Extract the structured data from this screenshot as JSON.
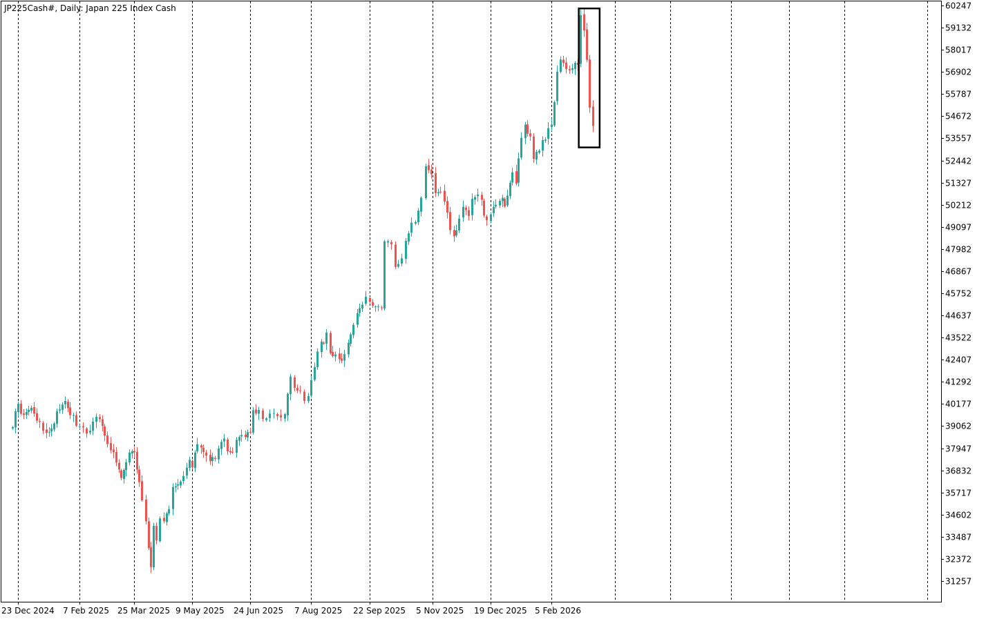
{
  "chart_data": {
    "type": "candlestick",
    "title": "JP225Cash#, Daily:  Japan 225 Index Cash",
    "colors": {
      "up": "#26a69a",
      "down": "#ef5350",
      "grid": "#000000",
      "frame": "#000000",
      "highlight": "#000000"
    },
    "grid": "vertical-dashed",
    "ylim": [
      30700,
      60247
    ],
    "y_ticks": [
      60247,
      59132,
      58017,
      56902,
      55787,
      54672,
      53557,
      52442,
      51327,
      50212,
      49097,
      47982,
      46867,
      45752,
      44637,
      43522,
      42407,
      41292,
      40177,
      39062,
      37947,
      36832,
      35717,
      34602,
      33487,
      32372,
      31257
    ],
    "x_ticks": [
      {
        "date": "2024-12-23",
        "label": "23 Dec 2024"
      },
      {
        "date": "2025-02-07",
        "label": "7 Feb 2025"
      },
      {
        "date": "2025-03-25",
        "label": "25 Mar 2025"
      },
      {
        "date": "2025-05-09",
        "label": "9 May 2025"
      },
      {
        "date": "2025-06-24",
        "label": "24 Jun 2025"
      },
      {
        "date": "2025-08-07",
        "label": "7 Aug 2025"
      },
      {
        "date": "2025-09-22",
        "label": "22 Sep 2025"
      },
      {
        "date": "2025-11-05",
        "label": "5 Nov 2025"
      },
      {
        "date": "2025-12-19",
        "label": "19 Dec 2025"
      },
      {
        "date": "2026-02-05",
        "label": "5 Feb 2026"
      }
    ],
    "highlight_box": {
      "date_from": "2026-02-26",
      "date_to": "2026-03-14",
      "price_low": 53100,
      "price_high": 60100
    },
    "series_close": [
      [
        "2024-12-17",
        39000
      ],
      [
        "2024-12-19",
        39200
      ],
      [
        "2024-12-23",
        40100
      ],
      [
        "2024-12-27",
        39600
      ],
      [
        "2025-01-02",
        40050
      ],
      [
        "2025-01-08",
        39100
      ],
      [
        "2025-01-13",
        38600
      ],
      [
        "2025-01-17",
        38850
      ],
      [
        "2025-01-21",
        39800
      ],
      [
        "2025-01-27",
        40300
      ],
      [
        "2025-01-31",
        39600
      ],
      [
        "2025-02-07",
        39100
      ],
      [
        "2025-02-13",
        38650
      ],
      [
        "2025-02-18",
        39250
      ],
      [
        "2025-02-24",
        39450
      ],
      [
        "2025-02-28",
        38450
      ],
      [
        "2025-03-05",
        37900
      ],
      [
        "2025-03-10",
        37250
      ],
      [
        "2025-03-14",
        36550
      ],
      [
        "2025-03-18",
        37050
      ],
      [
        "2025-03-21",
        37800
      ],
      [
        "2025-03-25",
        37600
      ],
      [
        "2025-03-27",
        36850
      ],
      [
        "2025-03-31",
        35500
      ],
      [
        "2025-04-03",
        34300
      ],
      [
        "2025-04-07",
        31800
      ],
      [
        "2025-04-09",
        34100
      ],
      [
        "2025-04-11",
        33300
      ],
      [
        "2025-04-14",
        34600
      ],
      [
        "2025-04-17",
        34400
      ],
      [
        "2025-04-21",
        35000
      ],
      [
        "2025-04-24",
        35800
      ],
      [
        "2025-04-28",
        36100
      ],
      [
        "2025-05-02",
        36600
      ],
      [
        "2025-05-07",
        37400
      ],
      [
        "2025-05-09",
        37100
      ],
      [
        "2025-05-13",
        38300
      ],
      [
        "2025-05-16",
        37800
      ],
      [
        "2025-05-20",
        37400
      ],
      [
        "2025-05-23",
        37300
      ],
      [
        "2025-05-27",
        37500
      ],
      [
        "2025-05-30",
        37900
      ],
      [
        "2025-06-03",
        38300
      ],
      [
        "2025-06-06",
        37800
      ],
      [
        "2025-06-10",
        37900
      ],
      [
        "2025-06-13",
        38300
      ],
      [
        "2025-06-17",
        38500
      ],
      [
        "2025-06-20",
        38600
      ],
      [
        "2025-06-24",
        38900
      ],
      [
        "2025-06-26",
        40000
      ],
      [
        "2025-06-30",
        39700
      ],
      [
        "2025-07-03",
        39500
      ],
      [
        "2025-07-08",
        39700
      ],
      [
        "2025-07-11",
        39600
      ],
      [
        "2025-07-16",
        39500
      ],
      [
        "2025-07-19",
        39700
      ],
      [
        "2025-07-23",
        41400
      ],
      [
        "2025-07-26",
        41000
      ],
      [
        "2025-07-30",
        40900
      ],
      [
        "2025-08-02",
        40400
      ],
      [
        "2025-08-05",
        40700
      ],
      [
        "2025-08-07",
        41500
      ],
      [
        "2025-08-12",
        42900
      ],
      [
        "2025-08-15",
        43200
      ],
      [
        "2025-08-19",
        43600
      ],
      [
        "2025-08-22",
        42900
      ],
      [
        "2025-08-26",
        42600
      ],
      [
        "2025-08-29",
        42400
      ],
      [
        "2025-09-02",
        42500
      ],
      [
        "2025-09-05",
        43300
      ],
      [
        "2025-09-09",
        44200
      ],
      [
        "2025-09-12",
        44800
      ],
      [
        "2025-09-16",
        45200
      ],
      [
        "2025-09-19",
        45700
      ],
      [
        "2025-09-22",
        45500
      ],
      [
        "2025-09-26",
        45000
      ],
      [
        "2025-09-30",
        45100
      ],
      [
        "2025-10-02",
        48500
      ],
      [
        "2025-10-07",
        48100
      ],
      [
        "2025-10-10",
        47200
      ],
      [
        "2025-10-14",
        47600
      ],
      [
        "2025-10-17",
        48300
      ],
      [
        "2025-10-21",
        49300
      ],
      [
        "2025-10-24",
        49500
      ],
      [
        "2025-10-28",
        50500
      ],
      [
        "2025-10-31",
        52300
      ],
      [
        "2025-11-04",
        51700
      ],
      [
        "2025-11-07",
        50800
      ],
      [
        "2025-11-11",
        51000
      ],
      [
        "2025-11-14",
        50400
      ],
      [
        "2025-11-18",
        48900
      ],
      [
        "2025-11-21",
        48500
      ],
      [
        "2025-11-25",
        49600
      ],
      [
        "2025-11-28",
        50100
      ],
      [
        "2025-12-02",
        49600
      ],
      [
        "2025-12-05",
        50400
      ],
      [
        "2025-12-09",
        50600
      ],
      [
        "2025-12-12",
        50300
      ],
      [
        "2025-12-16",
        49300
      ],
      [
        "2025-12-19",
        49900
      ],
      [
        "2025-12-23",
        50300
      ],
      [
        "2025-12-26",
        50500
      ],
      [
        "2025-12-30",
        50300
      ],
      [
        "2026-01-05",
        51900
      ],
      [
        "2026-01-08",
        51400
      ],
      [
        "2026-01-12",
        53700
      ],
      [
        "2026-01-15",
        54100
      ],
      [
        "2026-01-19",
        53600
      ],
      [
        "2026-01-22",
        52500
      ],
      [
        "2026-01-26",
        53100
      ],
      [
        "2026-01-29",
        53300
      ],
      [
        "2026-02-02",
        53900
      ],
      [
        "2026-02-05",
        54200
      ],
      [
        "2026-02-09",
        56900
      ],
      [
        "2026-02-12",
        57700
      ],
      [
        "2026-02-16",
        57000
      ],
      [
        "2026-02-19",
        57000
      ],
      [
        "2026-02-23",
        57200
      ],
      [
        "2026-02-25",
        57100
      ],
      [
        "2026-02-27",
        59800
      ],
      [
        "2026-03-02",
        58800
      ],
      [
        "2026-03-04",
        57600
      ],
      [
        "2026-03-06",
        55000
      ],
      [
        "2026-03-09",
        54000
      ]
    ]
  }
}
